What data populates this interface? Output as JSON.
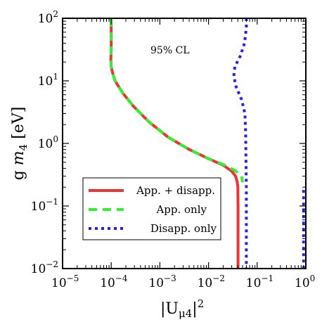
{
  "chart_data": {
    "type": "line",
    "annotation": "95% CL",
    "xlabel": "|U_μ4|²",
    "ylabel": "g m₄ [eV]",
    "x_scale": "log",
    "y_scale": "log",
    "xlim": [
      1e-05,
      1
    ],
    "ylim": [
      0.01,
      100
    ],
    "x_ticks": [
      {
        "base": "10",
        "exp": "−5"
      },
      {
        "base": "10",
        "exp": "−4"
      },
      {
        "base": "10",
        "exp": "−3"
      },
      {
        "base": "10",
        "exp": "−2"
      },
      {
        "base": "10",
        "exp": "−1"
      },
      {
        "base": "10",
        "exp": "0"
      }
    ],
    "y_ticks": [
      {
        "base": "10",
        "exp": "−2"
      },
      {
        "base": "10",
        "exp": "−1"
      },
      {
        "base": "10",
        "exp": "0"
      },
      {
        "base": "10",
        "exp": "1"
      },
      {
        "base": "10",
        "exp": "2"
      }
    ],
    "legend_position": "lower-left",
    "series": [
      {
        "name": "App. + disapp.",
        "color": "#ee3333",
        "style": "solid",
        "points": [
          [
            0.0001,
            100
          ],
          [
            0.0001,
            30
          ],
          [
            9.8e-05,
            22
          ],
          [
            0.0001,
            17
          ],
          [
            0.000105,
            14
          ],
          [
            0.00012,
            10
          ],
          [
            0.00017,
            6.5
          ],
          [
            0.00028,
            4.0
          ],
          [
            0.0006,
            2.2
          ],
          [
            0.0015,
            1.25
          ],
          [
            0.004,
            0.8
          ],
          [
            0.01,
            0.57
          ],
          [
            0.02,
            0.45
          ],
          [
            0.03,
            0.36
          ],
          [
            0.036,
            0.3
          ],
          [
            0.039,
            0.24
          ],
          [
            0.04,
            0.2
          ],
          [
            0.0405,
            0.1
          ],
          [
            0.0405,
            0.05
          ],
          [
            0.0405,
            0.01
          ]
        ]
      },
      {
        "name": "App. only",
        "color": "#33ee33",
        "style": "dashed",
        "points": [
          [
            0.0001,
            100
          ],
          [
            0.0001,
            30
          ],
          [
            9.8e-05,
            22
          ],
          [
            0.0001,
            17
          ],
          [
            0.000105,
            14
          ],
          [
            0.00012,
            10
          ],
          [
            0.00017,
            6.5
          ],
          [
            0.00028,
            4.0
          ],
          [
            0.0006,
            2.2
          ],
          [
            0.0015,
            1.25
          ],
          [
            0.004,
            0.8
          ],
          [
            0.01,
            0.57
          ],
          [
            0.02,
            0.46
          ],
          [
            0.035,
            0.37
          ],
          [
            0.048,
            0.3
          ],
          [
            0.05,
            0.24
          ]
        ]
      },
      {
        "name": "Disapp. only",
        "color": "#2222ee",
        "style": "dotted",
        "points": [
          [
            0.06,
            100
          ],
          [
            0.06,
            70
          ],
          [
            0.055,
            40
          ],
          [
            0.045,
            25
          ],
          [
            0.035,
            17
          ],
          [
            0.033,
            12
          ],
          [
            0.037,
            8
          ],
          [
            0.048,
            5
          ],
          [
            0.056,
            3
          ],
          [
            0.058,
            1.5
          ],
          [
            0.059,
            0.5
          ],
          [
            0.06,
            0.2
          ],
          [
            0.06,
            0.05
          ],
          [
            0.06,
            0.01
          ]
        ]
      },
      {
        "name": "",
        "color": "#2222ee",
        "style": "dotted",
        "points": [
          [
            0.9,
            0.18
          ],
          [
            0.9,
            0.1
          ],
          [
            0.9,
            0.05
          ],
          [
            0.9,
            0.02
          ],
          [
            0.9,
            0.01
          ]
        ]
      }
    ]
  }
}
